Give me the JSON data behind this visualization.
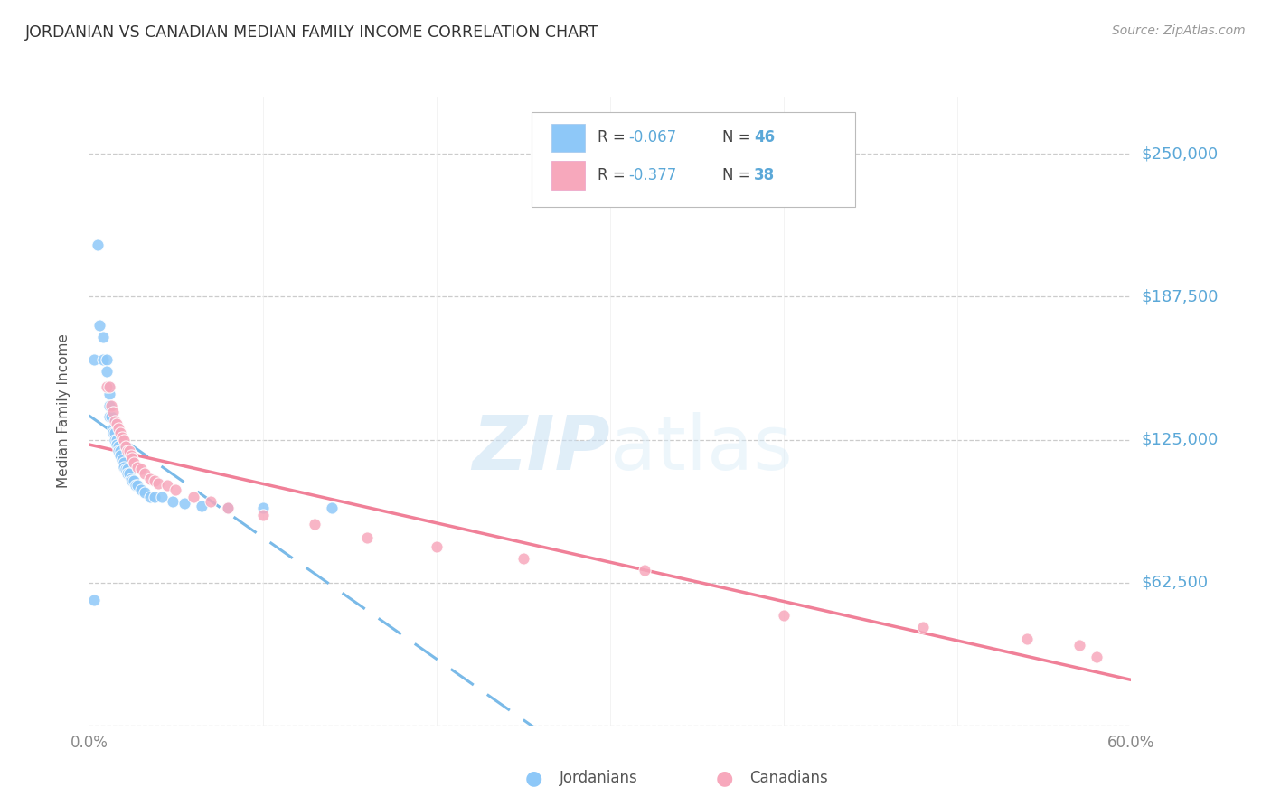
{
  "title": "JORDANIAN VS CANADIAN MEDIAN FAMILY INCOME CORRELATION CHART",
  "source": "Source: ZipAtlas.com",
  "ylabel": "Median Family Income",
  "yticks": [
    0,
    62500,
    125000,
    187500,
    250000
  ],
  "ytick_labels": [
    "",
    "$62,500",
    "$125,000",
    "$187,500",
    "$250,000"
  ],
  "xlim": [
    0.0,
    0.6
  ],
  "ylim": [
    0,
    275000
  ],
  "watermark_zip": "ZIP",
  "watermark_atlas": "atlas",
  "legend_r_jordan": "-0.067",
  "legend_n_jordan": "46",
  "legend_r_canada": "-0.377",
  "legend_n_canada": "38",
  "jordan_color": "#8EC8F8",
  "canada_color": "#F7A8BC",
  "jordan_line_color": "#7ABAE8",
  "canada_line_color": "#F08098",
  "background_color": "#FFFFFF",
  "grid_color": "#CCCCCC",
  "right_label_color": "#5BA8D8",
  "title_color": "#333333",
  "source_color": "#999999",
  "jordanians_x": [
    0.005,
    0.003,
    0.006,
    0.008,
    0.008,
    0.01,
    0.01,
    0.011,
    0.012,
    0.012,
    0.012,
    0.013,
    0.014,
    0.014,
    0.015,
    0.015,
    0.016,
    0.016,
    0.017,
    0.017,
    0.018,
    0.018,
    0.019,
    0.02,
    0.02,
    0.021,
    0.022,
    0.022,
    0.023,
    0.024,
    0.025,
    0.026,
    0.027,
    0.028,
    0.03,
    0.032,
    0.035,
    0.038,
    0.042,
    0.048,
    0.055,
    0.065,
    0.08,
    0.1,
    0.14,
    0.003
  ],
  "jordanians_y": [
    210000,
    160000,
    175000,
    170000,
    160000,
    160000,
    155000,
    148000,
    145000,
    140000,
    135000,
    135000,
    130000,
    128000,
    128000,
    125000,
    125000,
    123000,
    122000,
    120000,
    120000,
    118000,
    116000,
    115000,
    113000,
    112000,
    112000,
    110000,
    110000,
    108000,
    107000,
    107000,
    105000,
    105000,
    103000,
    102000,
    100000,
    100000,
    100000,
    98000,
    97000,
    96000,
    95000,
    95000,
    95000,
    55000
  ],
  "canadians_x": [
    0.01,
    0.012,
    0.013,
    0.014,
    0.015,
    0.016,
    0.017,
    0.018,
    0.019,
    0.02,
    0.021,
    0.022,
    0.023,
    0.024,
    0.025,
    0.026,
    0.028,
    0.03,
    0.032,
    0.035,
    0.038,
    0.04,
    0.045,
    0.05,
    0.06,
    0.07,
    0.08,
    0.1,
    0.13,
    0.16,
    0.2,
    0.25,
    0.32,
    0.4,
    0.48,
    0.54,
    0.57,
    0.58
  ],
  "canadians_y": [
    148000,
    148000,
    140000,
    137000,
    133000,
    132000,
    130000,
    128000,
    126000,
    125000,
    122000,
    120000,
    120000,
    118000,
    117000,
    115000,
    113000,
    112000,
    110000,
    108000,
    107000,
    106000,
    105000,
    103000,
    100000,
    98000,
    95000,
    92000,
    88000,
    82000,
    78000,
    73000,
    68000,
    48000,
    43000,
    38000,
    35000,
    30000
  ]
}
